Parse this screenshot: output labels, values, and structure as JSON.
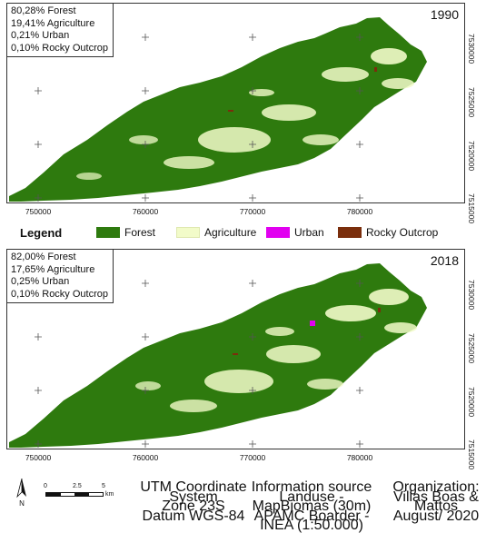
{
  "panels": [
    {
      "year": "1990",
      "stats": [
        "80,28% Forest",
        "19,41% Agriculture",
        "0,21% Urban",
        "0,10% Rocky Outcrop"
      ]
    },
    {
      "year": "2018",
      "stats": [
        "82,00% Forest",
        "17,65% Agriculture",
        "0,25% Urban",
        "0,10% Rocky Outcrop"
      ]
    }
  ],
  "axes": {
    "x_ticks": [
      "750000",
      "760000",
      "770000",
      "780000"
    ],
    "y_ticks": [
      "7530000",
      "7525000",
      "7520000",
      "7515000"
    ]
  },
  "legend": {
    "title": "Legend",
    "items": [
      {
        "label": "Forest",
        "color": "#2e7a0e"
      },
      {
        "label": "Agriculture",
        "color": "#f2fbc9"
      },
      {
        "label": "Urban",
        "color": "#e100f0"
      },
      {
        "label": "Rocky Outcrop",
        "color": "#7a2e0c"
      }
    ]
  },
  "footer": {
    "north_label": "N",
    "scale": {
      "ticks": [
        "0",
        "2.5",
        "5"
      ],
      "unit": "km"
    },
    "projection": [
      "UTM Coordinate System",
      "Zone 23S",
      "Datum WGS-84"
    ],
    "source": [
      "Information source",
      "Landuse - MapBiomas (30m)",
      "APAMC Boarder - INEA (1:50.000)"
    ],
    "organization": [
      "Organization:",
      "Villas Boas & Mattos",
      "August/ 2020"
    ]
  }
}
